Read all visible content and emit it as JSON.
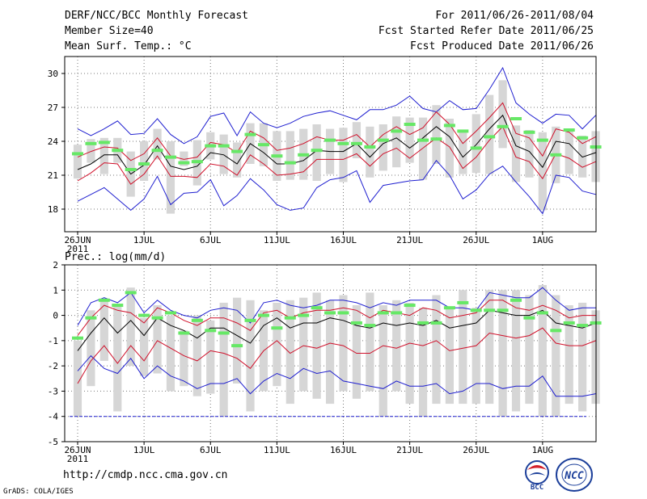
{
  "header": {
    "title": "DERF/NCC/BCC Monthly Forecast",
    "member_size": "Member Size=40",
    "variable": "Mean Surf. Temp.: °C",
    "period": "For 2011/06/26-2011/08/04",
    "started": "Fcst Started Refer Date 2011/06/25",
    "produced": "Fcst Produced Date 2011/06/26"
  },
  "footer": {
    "url": "http://cmdp.ncc.cma.gov.cn",
    "credit": "GrADS: COLA/IGES",
    "logo_bcc": "BCC",
    "logo_ncc": "NCC"
  },
  "colors": {
    "envelope": "#1f1fd0",
    "inner": "#d0102a",
    "mean": "#000000",
    "box": "#d6d6d6",
    "marker": "#66e866",
    "grid": "#777777"
  },
  "chart_data": [
    {
      "type": "box",
      "title": "",
      "ylabel": "Mean Surf. Temp.: °C",
      "ylim": [
        16,
        31.5
      ],
      "yticks": [
        18,
        21,
        24,
        27,
        30
      ],
      "xtick_labels": [
        "26JUN",
        "1JUL",
        "6JUL",
        "11JUL",
        "16JUL",
        "21JUL",
        "26JUL",
        "1AUG"
      ],
      "xtick_year": "2011",
      "days": 40,
      "series": [
        {
          "name": "max",
          "values": [
            25.1,
            24.5,
            25.1,
            25.8,
            24.6,
            24.7,
            26.0,
            24.6,
            23.8,
            24.4,
            26.2,
            26.5,
            24.5,
            26.6,
            25.6,
            25.2,
            25.6,
            26.2,
            26.5,
            26.7,
            26.3,
            25.9,
            26.8,
            26.8,
            27.2,
            28.0,
            26.9,
            26.6,
            27.6,
            26.8,
            26.9,
            28.6,
            30.5,
            27.4,
            26.4,
            25.6,
            26.4,
            26.3,
            25.1,
            26.3
          ]
        },
        {
          "name": "upper",
          "values": [
            22.6,
            23.1,
            23.5,
            23.4,
            22.3,
            22.9,
            24.3,
            22.7,
            22.4,
            22.6,
            23.9,
            23.7,
            23.0,
            24.9,
            24.3,
            23.2,
            23.4,
            23.8,
            24.4,
            24.1,
            24.1,
            24.6,
            23.5,
            24.6,
            25.3,
            24.6,
            25.2,
            26.6,
            25.5,
            23.8,
            24.9,
            26.1,
            27.4,
            24.7,
            24.3,
            22.7,
            25.1,
            24.8,
            23.8,
            24.4
          ]
        },
        {
          "name": "mean",
          "values": [
            21.5,
            22.0,
            22.8,
            22.8,
            21.1,
            21.9,
            23.6,
            21.8,
            21.5,
            21.8,
            23.0,
            22.8,
            22.0,
            23.8,
            23.0,
            22.0,
            22.0,
            22.3,
            23.2,
            23.1,
            23.1,
            23.8,
            22.6,
            23.8,
            24.3,
            23.4,
            24.3,
            25.3,
            24.4,
            22.6,
            23.7,
            25.1,
            26.3,
            23.6,
            23.1,
            21.7,
            24.0,
            23.8,
            22.6,
            23.0
          ]
        },
        {
          "name": "lower",
          "values": [
            20.5,
            21.2,
            22.1,
            22.0,
            20.2,
            21.1,
            22.7,
            20.9,
            20.9,
            20.8,
            22.0,
            21.8,
            21.0,
            22.8,
            22.0,
            21.0,
            21.1,
            21.3,
            22.4,
            22.4,
            22.4,
            22.9,
            21.8,
            22.9,
            23.4,
            22.5,
            23.4,
            24.3,
            23.5,
            21.6,
            22.6,
            24.1,
            25.3,
            22.6,
            22.2,
            20.7,
            22.9,
            22.5,
            21.7,
            22.2
          ]
        },
        {
          "name": "min",
          "values": [
            18.7,
            19.3,
            19.9,
            18.9,
            17.9,
            18.9,
            20.9,
            18.4,
            19.4,
            19.5,
            20.6,
            18.3,
            19.2,
            20.7,
            19.7,
            18.4,
            17.9,
            18.1,
            19.9,
            20.6,
            20.8,
            21.4,
            18.6,
            20.1,
            20.3,
            20.5,
            20.6,
            22.3,
            21.0,
            18.9,
            19.7,
            21.1,
            21.8,
            20.4,
            19.1,
            17.6,
            21.0,
            20.8,
            19.6,
            19.3
          ]
        },
        {
          "name": "box_top",
          "values": [
            23.7,
            24.2,
            24.3,
            24.3,
            23.1,
            24.0,
            25.1,
            24.0,
            23.1,
            24.1,
            24.8,
            24.6,
            23.9,
            25.6,
            25.6,
            24.9,
            24.9,
            25.1,
            25.5,
            25.1,
            25.2,
            25.7,
            25.3,
            25.5,
            26.2,
            26.1,
            26.1,
            27.2,
            26.0,
            24.8,
            26.4,
            28.1,
            29.4,
            25.4,
            25.0,
            24.8,
            25.3,
            24.9,
            24.5,
            24.9
          ]
        },
        {
          "name": "box_bottom",
          "values": [
            20.7,
            22.1,
            21.1,
            22.1,
            19.1,
            20.5,
            22.4,
            17.6,
            21.8,
            20.1,
            22.4,
            21.1,
            20.8,
            22.0,
            21.8,
            20.5,
            20.6,
            20.6,
            20.5,
            21.1,
            20.4,
            22.5,
            20.8,
            21.4,
            21.7,
            22.1,
            20.6,
            22.0,
            20.8,
            21.1,
            21.2,
            21.1,
            23.4,
            20.4,
            20.8,
            17.9,
            20.3,
            21.1,
            20.8,
            20.4
          ]
        },
        {
          "name": "obs_marker",
          "values": [
            22.9,
            23.8,
            23.9,
            23.2,
            21.5,
            22.0,
            23.2,
            22.6,
            22.1,
            22.2,
            23.6,
            23.6,
            23.1,
            24.6,
            23.7,
            22.7,
            22.1,
            22.8,
            23.2,
            24.1,
            23.8,
            23.8,
            23.5,
            24.1,
            24.9,
            25.5,
            24.1,
            24.2,
            25.4,
            24.9,
            23.4,
            24.4,
            25.3,
            26.0,
            24.8,
            24.1,
            22.8,
            25.0,
            24.3,
            23.5
          ]
        }
      ]
    },
    {
      "type": "box",
      "title": "",
      "ylabel": "Prec.: log(mm/d)",
      "ylim": [
        -5,
        2
      ],
      "yticks": [
        -5,
        -4,
        -3,
        -2,
        -1,
        0,
        1,
        2
      ],
      "xtick_labels": [
        "26JUN",
        "1JUL",
        "6JUL",
        "11JUL",
        "16JUL",
        "21JUL",
        "26JUL",
        "1AUG"
      ],
      "xtick_year": "2011",
      "days": 40,
      "baseline": -4,
      "series": [
        {
          "name": "max",
          "values": [
            -0.4,
            0.5,
            0.7,
            0.5,
            0.9,
            0.1,
            0.6,
            0.2,
            0.0,
            -0.1,
            0.2,
            0.3,
            0.2,
            -0.3,
            0.5,
            0.6,
            0.4,
            0.3,
            0.4,
            0.6,
            0.6,
            0.5,
            0.3,
            0.5,
            0.4,
            0.6,
            0.6,
            0.6,
            0.3,
            0.3,
            0.2,
            0.9,
            0.8,
            0.7,
            0.7,
            1.1,
            0.6,
            0.2,
            0.3,
            0.3
          ]
        },
        {
          "name": "upper",
          "values": [
            -0.8,
            -0.1,
            0.4,
            0.2,
            0.1,
            -0.3,
            0.3,
            0.1,
            -0.2,
            -0.4,
            -0.1,
            -0.1,
            -0.3,
            -0.6,
            0.1,
            0.2,
            -0.1,
            0.1,
            0.2,
            0.2,
            0.3,
            0.2,
            -0.1,
            0.2,
            0.1,
            0.0,
            0.3,
            0.2,
            -0.1,
            0.0,
            0.1,
            0.6,
            0.6,
            0.3,
            0.2,
            0.4,
            0.2,
            -0.1,
            0.0,
            0.0
          ]
        },
        {
          "name": "mean",
          "values": [
            -1.4,
            -0.7,
            -0.1,
            -0.7,
            -0.2,
            -0.8,
            -0.1,
            -0.4,
            -0.6,
            -0.9,
            -0.5,
            -0.5,
            -0.8,
            -1.1,
            -0.4,
            -0.1,
            -0.5,
            -0.3,
            -0.3,
            -0.1,
            -0.2,
            -0.4,
            -0.5,
            -0.3,
            -0.4,
            -0.3,
            -0.4,
            -0.2,
            -0.5,
            -0.4,
            -0.3,
            0.2,
            0.1,
            0.0,
            0.0,
            0.2,
            -0.3,
            -0.4,
            -0.5,
            -0.3
          ]
        },
        {
          "name": "lower",
          "values": [
            -2.7,
            -1.8,
            -1.2,
            -1.9,
            -1.2,
            -1.8,
            -1.0,
            -1.3,
            -1.6,
            -1.8,
            -1.4,
            -1.5,
            -1.7,
            -2.1,
            -1.4,
            -1.0,
            -1.5,
            -1.2,
            -1.3,
            -1.1,
            -1.2,
            -1.5,
            -1.5,
            -1.2,
            -1.3,
            -1.1,
            -1.2,
            -1.0,
            -1.4,
            -1.3,
            -1.2,
            -0.7,
            -0.8,
            -0.9,
            -0.8,
            -0.5,
            -1.1,
            -1.2,
            -1.2,
            -1.0
          ]
        },
        {
          "name": "min",
          "values": [
            -2.2,
            -1.6,
            -2.1,
            -2.3,
            -1.7,
            -2.5,
            -2.0,
            -2.4,
            -2.6,
            -2.9,
            -2.7,
            -2.7,
            -2.5,
            -3.1,
            -2.6,
            -2.3,
            -2.5,
            -2.1,
            -2.3,
            -2.2,
            -2.6,
            -2.7,
            -2.8,
            -2.9,
            -2.6,
            -2.8,
            -2.8,
            -2.7,
            -3.1,
            -3.0,
            -2.7,
            -2.7,
            -2.9,
            -2.8,
            -2.8,
            -2.4,
            -3.2,
            -3.2,
            -3.2,
            -3.1
          ]
        },
        {
          "name": "box_top",
          "values": [
            -1.0,
            0.2,
            0.6,
            0.4,
            1.1,
            -0.1,
            0.4,
            0.0,
            -0.6,
            0.0,
            -0.2,
            0.5,
            0.7,
            0.6,
            0.2,
            0.5,
            0.6,
            0.7,
            0.9,
            0.6,
            0.8,
            0.4,
            0.9,
            0.4,
            0.6,
            0.5,
            0.3,
            0.8,
            0.3,
            1.0,
            0.3,
            1.0,
            1.0,
            1.0,
            0.8,
            1.2,
            0.8,
            0.4,
            0.5,
            0.2
          ]
        },
        {
          "name": "box_bottom",
          "values": [
            -4.0,
            -2.8,
            -1.8,
            -3.8,
            -2.0,
            -2.4,
            -2.3,
            -3.0,
            -2.8,
            -3.2,
            -3.1,
            -4.0,
            -2.7,
            -3.8,
            -3.0,
            -2.8,
            -3.5,
            -3.0,
            -3.3,
            -3.5,
            -3.0,
            -3.3,
            -3.0,
            -4.0,
            -3.0,
            -3.5,
            -4.0,
            -3.5,
            -3.5,
            -3.5,
            -3.5,
            -3.5,
            -4.0,
            -3.8,
            -3.5,
            -4.0,
            -4.0,
            -3.5,
            -3.8,
            -3.5
          ]
        },
        {
          "name": "obs_marker",
          "values": [
            -0.9,
            -0.1,
            0.6,
            0.4,
            0.9,
            0.0,
            -0.1,
            0.1,
            -0.7,
            -0.2,
            -0.6,
            -0.7,
            -1.2,
            -0.2,
            0.0,
            -0.5,
            -0.1,
            0.0,
            0.3,
            0.1,
            0.1,
            -0.3,
            -0.4,
            0.1,
            0.1,
            0.4,
            -0.3,
            -0.3,
            0.3,
            0.5,
            0.2,
            0.2,
            0.2,
            0.6,
            -0.1,
            0.1,
            -0.6,
            -0.3,
            -0.4,
            -0.3
          ]
        }
      ]
    }
  ]
}
